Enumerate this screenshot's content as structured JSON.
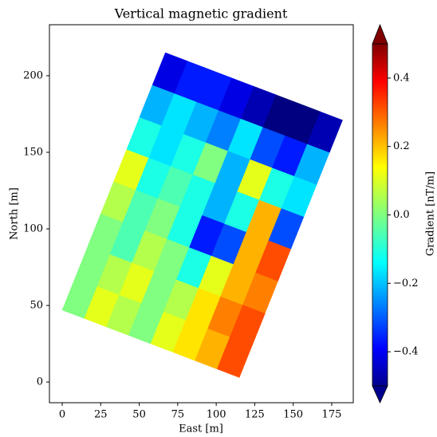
{
  "chart_data": {
    "type": "scatter",
    "title": "Vertical magnetic gradient",
    "x_label": "East [m]",
    "y_label": "North [m]",
    "colorbar_label": "Gradient [nT/m]",
    "xlim": [
      -8.3,
      189
    ],
    "ylim": [
      -13.5,
      233.3
    ],
    "xticks": [
      0,
      25,
      50,
      75,
      100,
      125,
      150,
      175
    ],
    "yticks": [
      0,
      50,
      100,
      150,
      200
    ],
    "clim": [
      -0.5,
      0.5
    ],
    "cticks": [
      {
        "value": -0.4,
        "label": "−0.4"
      },
      {
        "value": -0.2,
        "label": "−0.2"
      },
      {
        "value": 0,
        "label": "0.0"
      },
      0.2,
      0.4
    ],
    "colormap": "jet",
    "x": [
      11.4,
      25.8,
      40.1,
      54.5,
      68.9,
      83.3,
      97.6,
      112.0,
      19.8,
      34.2,
      48.5,
      62.9,
      77.3,
      91.7,
      106.0,
      120.4,
      28.1,
      42.5,
      56.8,
      71.2,
      85.6,
      100.0,
      114.3,
      128.7,
      36.5,
      50.9,
      65.2,
      79.6,
      94.0,
      108.4,
      122.7,
      137.1,
      44.9,
      59.3,
      73.6,
      88.0,
      102.4,
      116.8,
      131.1,
      145.5,
      53.3,
      67.7,
      82.0,
      96.4,
      110.8,
      125.2,
      139.5,
      153.9,
      61.6,
      76.0,
      90.3,
      104.7,
      119.1,
      133.5,
      147.8,
      162.2,
      70.0,
      84.4,
      98.7,
      113.1,
      127.5,
      141.9,
      156.2,
      170.6
    ],
    "y": [
      54.75,
      49.25,
      43.75,
      38.25,
      32.75,
      27.25,
      21.75,
      16.25,
      75.75,
      70.25,
      64.75,
      59.25,
      53.75,
      48.25,
      42.75,
      37.25,
      96.75,
      91.25,
      85.75,
      80.25,
      74.75,
      69.25,
      63.75,
      58.25,
      117.75,
      112.25,
      106.75,
      101.25,
      95.75,
      90.25,
      84.75,
      79.25,
      138.75,
      133.25,
      127.75,
      122.25,
      116.75,
      111.25,
      105.75,
      100.25,
      159.75,
      154.25,
      148.75,
      143.25,
      137.75,
      132.25,
      126.75,
      121.25,
      180.75,
      175.25,
      169.75,
      164.25,
      158.75,
      153.25,
      147.75,
      142.25,
      201.75,
      196.25,
      190.75,
      185.25,
      179.75,
      174.25,
      168.75,
      163.25
    ],
    "values": [
      0.0,
      0.1,
      0.05,
      0.0,
      0.1,
      0.15,
      0.2,
      0.3,
      0.0,
      0.05,
      0.1,
      0.0,
      0.05,
      0.15,
      0.25,
      0.3,
      0.0,
      -0.05,
      0.05,
      0.0,
      -0.1,
      0.1,
      0.2,
      0.25,
      0.05,
      -0.05,
      0.0,
      -0.1,
      -0.35,
      -0.3,
      0.2,
      0.3,
      0.1,
      -0.1,
      -0.05,
      -0.1,
      -0.2,
      -0.1,
      0.2,
      -0.3,
      -0.1,
      -0.15,
      -0.1,
      0.0,
      -0.2,
      0.1,
      -0.1,
      -0.15,
      -0.2,
      -0.15,
      -0.2,
      -0.25,
      -0.15,
      -0.3,
      -0.35,
      -0.2,
      -0.4,
      -0.35,
      -0.35,
      -0.4,
      -0.45,
      -0.5,
      -0.5,
      -0.45
    ]
  }
}
